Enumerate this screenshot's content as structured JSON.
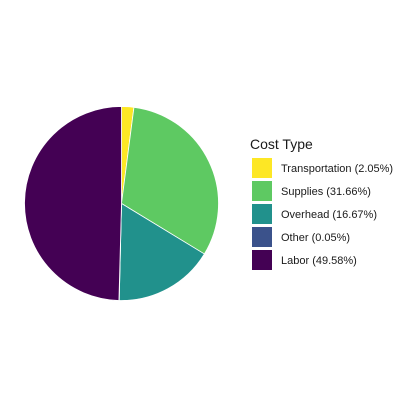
{
  "chart_data": {
    "type": "pie",
    "legend_title": "Cost Type",
    "legend_position": "right",
    "slices": [
      {
        "label": "Transportation (2.05%)",
        "category": "Transportation",
        "value": 2.05,
        "color": "#fde725"
      },
      {
        "label": "Supplies (31.66%)",
        "category": "Supplies",
        "value": 31.66,
        "color": "#5ec962"
      },
      {
        "label": "Overhead (16.67%)",
        "category": "Overhead",
        "value": 16.67,
        "color": "#21918c"
      },
      {
        "label": "Other (0.05%)",
        "category": "Other",
        "value": 0.05,
        "color": "#3b528b"
      },
      {
        "label": "Labor (49.58%)",
        "category": "Labor",
        "value": 49.58,
        "color": "#440154"
      }
    ]
  }
}
